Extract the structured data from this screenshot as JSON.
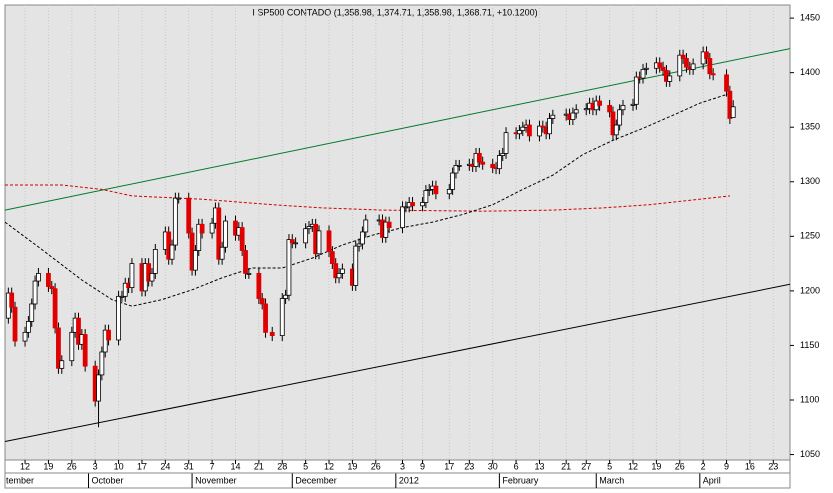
{
  "chart_data": {
    "type": "candlestick",
    "title": "I SP500 CONTADO (1,358.98, 1,374.71, 1,358.98, 1,368.71, +10.1200)",
    "x": [
      "2011-09-07",
      "2011-09-08",
      "2011-09-09",
      "2011-09-12",
      "2011-09-13",
      "2011-09-14",
      "2011-09-15",
      "2011-09-16",
      "2011-09-19",
      "2011-09-20",
      "2011-09-21",
      "2011-09-22",
      "2011-09-23",
      "2011-09-26",
      "2011-09-27",
      "2011-09-28",
      "2011-09-29",
      "2011-09-30",
      "2011-10-03",
      "2011-10-04",
      "2011-10-05",
      "2011-10-06",
      "2011-10-07",
      "2011-10-10",
      "2011-10-11",
      "2011-10-12",
      "2011-10-13",
      "2011-10-14",
      "2011-10-17",
      "2011-10-18",
      "2011-10-19",
      "2011-10-20",
      "2011-10-21",
      "2011-10-24",
      "2011-10-25",
      "2011-10-26",
      "2011-10-27",
      "2011-10-28",
      "2011-10-31",
      "2011-11-01",
      "2011-11-02",
      "2011-11-03",
      "2011-11-04",
      "2011-11-07",
      "2011-11-08",
      "2011-11-09",
      "2011-11-10",
      "2011-11-11",
      "2011-11-14",
      "2011-11-15",
      "2011-11-16",
      "2011-11-17",
      "2011-11-18",
      "2011-11-21",
      "2011-11-22",
      "2011-11-23",
      "2011-11-25",
      "2011-11-28",
      "2011-11-29",
      "2011-11-30",
      "2011-12-01",
      "2011-12-02",
      "2011-12-05",
      "2011-12-06",
      "2011-12-07",
      "2011-12-08",
      "2011-12-09",
      "2011-12-12",
      "2011-12-13",
      "2011-12-14",
      "2011-12-15",
      "2011-12-16",
      "2011-12-19",
      "2011-12-20",
      "2011-12-21",
      "2011-12-22",
      "2011-12-23",
      "2011-12-27",
      "2011-12-28",
      "2011-12-29",
      "2011-12-30",
      "2012-01-03",
      "2012-01-04",
      "2012-01-05",
      "2012-01-06",
      "2012-01-09",
      "2012-01-10",
      "2012-01-11",
      "2012-01-12",
      "2012-01-13",
      "2012-01-17",
      "2012-01-18",
      "2012-01-19",
      "2012-01-20",
      "2012-01-23",
      "2012-01-24",
      "2012-01-25",
      "2012-01-26",
      "2012-01-27",
      "2012-01-30",
      "2012-01-31",
      "2012-02-01",
      "2012-02-02",
      "2012-02-03",
      "2012-02-06",
      "2012-02-07",
      "2012-02-08",
      "2012-02-09",
      "2012-02-10",
      "2012-02-13",
      "2012-02-14",
      "2012-02-15",
      "2012-02-16",
      "2012-02-17",
      "2012-02-21",
      "2012-02-22",
      "2012-02-23",
      "2012-02-24",
      "2012-02-27",
      "2012-02-28",
      "2012-02-29",
      "2012-03-01",
      "2012-03-02",
      "2012-03-05",
      "2012-03-06",
      "2012-03-07",
      "2012-03-08",
      "2012-03-09",
      "2012-03-12",
      "2012-03-13",
      "2012-03-14",
      "2012-03-15",
      "2012-03-16",
      "2012-03-19",
      "2012-03-20",
      "2012-03-21",
      "2012-03-22",
      "2012-03-23",
      "2012-03-26",
      "2012-03-27",
      "2012-03-28",
      "2012-03-29",
      "2012-03-30",
      "2012-04-02",
      "2012-04-03",
      "2012-04-04",
      "2012-04-05",
      "2012-04-09",
      "2012-04-10",
      "2012-04-11"
    ],
    "open": [
      1175,
      1198,
      1185,
      1154,
      1162,
      1172,
      1188,
      1209,
      1216,
      1204,
      1202,
      1166,
      1129,
      1136,
      1162,
      1175,
      1151,
      1160,
      1131,
      1099,
      1123,
      1144,
      1164,
      1155,
      1195,
      1195,
      1207,
      1203,
      1225,
      1200,
      1225,
      1209,
      1216,
      1238,
      1254,
      1229,
      1242,
      1285,
      1285,
      1253,
      1219,
      1237,
      1261,
      1253,
      1262,
      1276,
      1229,
      1240,
      1264,
      1251,
      1258,
      1237,
      1216,
      1216,
      1193,
      1188,
      1162,
      1159,
      1193,
      1196,
      1247,
      1244,
      1244,
      1257,
      1259,
      1261,
      1234,
      1255,
      1236,
      1225,
      1212,
      1216,
      1220,
      1205,
      1241,
      1243,
      1254,
      1265,
      1265,
      1249,
      1263,
      1258,
      1277,
      1277,
      1281,
      1278,
      1281,
      1292,
      1293,
      1296,
      1289,
      1293,
      1308,
      1315,
      1315,
      1316,
      1314,
      1326,
      1318,
      1316,
      1313,
      1312,
      1324,
      1326,
      1345,
      1344,
      1347,
      1350,
      1352,
      1342,
      1351,
      1350,
      1344,
      1358,
      1361,
      1362,
      1357,
      1363,
      1366,
      1367,
      1372,
      1366,
      1374,
      1370,
      1364,
      1343,
      1352,
      1366,
      1370,
      1371,
      1396,
      1395,
      1403,
      1404,
      1409,
      1405,
      1402,
      1392,
      1397,
      1416,
      1413,
      1405,
      1403,
      1408,
      1419,
      1413,
      1399,
      1398,
      1383,
      1358.98
    ],
    "high": [
      1203,
      1203,
      1190,
      1167,
      1177,
      1193,
      1214,
      1221,
      1221,
      1209,
      1207,
      1171,
      1141,
      1167,
      1180,
      1180,
      1165,
      1165,
      1136,
      1128,
      1149,
      1169,
      1169,
      1200,
      1200,
      1212,
      1212,
      1230,
      1230,
      1230,
      1230,
      1221,
      1243,
      1259,
      1259,
      1247,
      1290,
      1290,
      1290,
      1258,
      1242,
      1266,
      1266,
      1267,
      1281,
      1281,
      1245,
      1269,
      1269,
      1263,
      1263,
      1242,
      1221,
      1221,
      1198,
      1193,
      1167,
      1198,
      1201,
      1252,
      1252,
      1249,
      1262,
      1264,
      1266,
      1266,
      1260,
      1260,
      1241,
      1230,
      1221,
      1225,
      1225,
      1246,
      1248,
      1259,
      1270,
      1270,
      1270,
      1268,
      1268,
      1282,
      1282,
      1286,
      1286,
      1286,
      1297,
      1298,
      1301,
      1301,
      1298,
      1313,
      1320,
      1320,
      1321,
      1321,
      1331,
      1331,
      1323,
      1321,
      1318,
      1329,
      1331,
      1350,
      1350,
      1352,
      1355,
      1357,
      1357,
      1356,
      1356,
      1355,
      1363,
      1366,
      1367,
      1367,
      1368,
      1371,
      1372,
      1377,
      1377,
      1379,
      1379,
      1375,
      1369,
      1357,
      1371,
      1375,
      1376,
      1401,
      1401,
      1408,
      1409,
      1414,
      1414,
      1410,
      1407,
      1402,
      1421,
      1421,
      1418,
      1410,
      1413,
      1424,
      1424,
      1418,
      1404,
      1403,
      1388,
      1374.71
    ],
    "low": [
      1170,
      1180,
      1149,
      1149,
      1157,
      1167,
      1183,
      1204,
      1199,
      1197,
      1161,
      1124,
      1124,
      1131,
      1157,
      1146,
      1146,
      1126,
      1094,
      1075,
      1118,
      1139,
      1150,
      1150,
      1190,
      1190,
      1198,
      1198,
      1195,
      1195,
      1204,
      1204,
      1211,
      1233,
      1224,
      1224,
      1237,
      1280,
      1248,
      1214,
      1214,
      1232,
      1248,
      1248,
      1257,
      1224,
      1224,
      1235,
      1246,
      1246,
      1232,
      1211,
      1211,
      1188,
      1183,
      1157,
      1154,
      1154,
      1188,
      1191,
      1239,
      1239,
      1239,
      1252,
      1254,
      1229,
      1229,
      1231,
      1220,
      1207,
      1207,
      1211,
      1200,
      1200,
      1236,
      1238,
      1249,
      1260,
      1244,
      1244,
      1253,
      1253,
      1272,
      1272,
      1273,
      1273,
      1276,
      1287,
      1288,
      1284,
      1284,
      1288,
      1303,
      1310,
      1310,
      1309,
      1309,
      1313,
      1311,
      1308,
      1307,
      1307,
      1319,
      1321,
      1339,
      1339,
      1342,
      1345,
      1337,
      1337,
      1345,
      1339,
      1339,
      1353,
      1356,
      1352,
      1352,
      1358,
      1361,
      1362,
      1361,
      1361,
      1365,
      1359,
      1338,
      1338,
      1347,
      1361,
      1365,
      1366,
      1390,
      1390,
      1398,
      1399,
      1400,
      1397,
      1387,
      1387,
      1392,
      1408,
      1400,
      1398,
      1398,
      1403,
      1408,
      1394,
      1393,
      1378,
      1353,
      1358.98
    ],
    "close": [
      1198,
      1185,
      1154,
      1162,
      1172,
      1188,
      1209,
      1216,
      1204,
      1202,
      1166,
      1129,
      1136,
      1162,
      1175,
      1151,
      1160,
      1131,
      1099,
      1123,
      1144,
      1164,
      1155,
      1195,
      1195,
      1207,
      1203,
      1225,
      1200,
      1225,
      1209,
      1216,
      1238,
      1254,
      1229,
      1242,
      1285,
      1285,
      1253,
      1219,
      1237,
      1261,
      1253,
      1262,
      1276,
      1229,
      1240,
      1264,
      1251,
      1258,
      1237,
      1216,
      1216,
      1193,
      1188,
      1162,
      1159,
      1193,
      1196,
      1247,
      1244,
      1244,
      1257,
      1259,
      1261,
      1234,
      1255,
      1236,
      1225,
      1212,
      1216,
      1220,
      1205,
      1241,
      1243,
      1254,
      1265,
      1265,
      1249,
      1263,
      1258,
      1277,
      1277,
      1281,
      1278,
      1281,
      1292,
      1293,
      1296,
      1289,
      1293,
      1308,
      1315,
      1315,
      1316,
      1314,
      1326,
      1318,
      1316,
      1313,
      1312,
      1324,
      1326,
      1345,
      1344,
      1347,
      1350,
      1352,
      1342,
      1351,
      1350,
      1344,
      1358,
      1361,
      1362,
      1357,
      1363,
      1366,
      1367,
      1372,
      1366,
      1374,
      1370,
      1364,
      1343,
      1352,
      1366,
      1370,
      1371,
      1396,
      1395,
      1403,
      1404,
      1409,
      1405,
      1402,
      1392,
      1397,
      1416,
      1413,
      1405,
      1403,
      1408,
      1419,
      1413,
      1399,
      1398,
      1383,
      1358,
      1368.71
    ],
    "up_color": "#ffffff",
    "down_color": "#e00000",
    "lines": [
      {
        "color": "#007a2a",
        "dash": false,
        "x": [
          "2011-09-06",
          "2012-04-28"
        ],
        "values": [
          1274,
          1422
        ]
      },
      {
        "color": "#000000",
        "dash": false,
        "x": [
          "2011-09-06",
          "2012-04-28"
        ],
        "values": [
          1062,
          1206
        ]
      },
      {
        "color": "#d00000",
        "dash": true,
        "x": [
          "2011-09-06",
          "2011-09-23",
          "2011-10-05",
          "2011-10-14",
          "2011-11-04",
          "2011-11-25",
          "2011-12-10",
          "2011-12-28",
          "2012-01-27",
          "2012-02-17",
          "2012-03-03",
          "2012-03-17",
          "2012-04-01",
          "2012-04-10"
        ],
        "values": [
          1297,
          1297,
          1293,
          1287,
          1284,
          1279,
          1276,
          1274,
          1273,
          1274,
          1276,
          1279,
          1284,
          1287
        ]
      },
      {
        "color": "#000000",
        "dash": true,
        "x": [
          "2011-09-06",
          "2011-09-17",
          "2011-09-29",
          "2011-10-08",
          "2011-10-14",
          "2011-10-23",
          "2011-11-01",
          "2011-11-10",
          "2011-11-19",
          "2011-11-28",
          "2011-12-07",
          "2011-12-16",
          "2011-12-25",
          "2012-01-03",
          "2012-01-12",
          "2012-01-21",
          "2012-01-30",
          "2012-02-08",
          "2012-02-17",
          "2012-02-26",
          "2012-03-06",
          "2012-03-15",
          "2012-03-24",
          "2012-04-01",
          "2012-04-10"
        ],
        "values": [
          1263,
          1238,
          1210,
          1192,
          1186,
          1192,
          1201,
          1212,
          1221,
          1221,
          1230,
          1242,
          1251,
          1258,
          1263,
          1270,
          1279,
          1293,
          1306,
          1325,
          1338,
          1349,
          1361,
          1372,
          1381
        ]
      }
    ],
    "xlim": [
      "2011-09-06",
      "2012-04-28"
    ],
    "xticks": [
      {
        "value": "2011-09-12",
        "label": "12"
      },
      {
        "value": "2011-09-19",
        "label": "19"
      },
      {
        "value": "2011-09-26",
        "label": "26"
      },
      {
        "value": "2011-10-03",
        "label": "3"
      },
      {
        "value": "2011-10-10",
        "label": "10"
      },
      {
        "value": "2011-10-17",
        "label": "17"
      },
      {
        "value": "2011-10-24",
        "label": "24"
      },
      {
        "value": "2011-10-31",
        "label": "31"
      },
      {
        "value": "2011-11-07",
        "label": "7"
      },
      {
        "value": "2011-11-14",
        "label": "14"
      },
      {
        "value": "2011-11-21",
        "label": "21"
      },
      {
        "value": "2011-11-28",
        "label": "28"
      },
      {
        "value": "2011-12-05",
        "label": "5"
      },
      {
        "value": "2011-12-12",
        "label": "12"
      },
      {
        "value": "2011-12-19",
        "label": "19"
      },
      {
        "value": "2011-12-26",
        "label": "26"
      },
      {
        "value": "2012-01-03",
        "label": "3"
      },
      {
        "value": "2012-01-09",
        "label": "9"
      },
      {
        "value": "2012-01-17",
        "label": "17"
      },
      {
        "value": "2012-01-23",
        "label": "23"
      },
      {
        "value": "2012-01-30",
        "label": "30"
      },
      {
        "value": "2012-02-06",
        "label": "6"
      },
      {
        "value": "2012-02-13",
        "label": "13"
      },
      {
        "value": "2012-02-21",
        "label": "21"
      },
      {
        "value": "2012-02-27",
        "label": "27"
      },
      {
        "value": "2012-03-05",
        "label": "5"
      },
      {
        "value": "2012-03-12",
        "label": "12"
      },
      {
        "value": "2012-03-19",
        "label": "19"
      },
      {
        "value": "2012-03-26",
        "label": "26"
      },
      {
        "value": "2012-04-02",
        "label": "2"
      },
      {
        "value": "2012-04-09",
        "label": "9"
      },
      {
        "value": "2012-04-16",
        "label": "16"
      },
      {
        "value": "2012-04-23",
        "label": "23"
      }
    ],
    "months": [
      {
        "value": "2011-09-01",
        "label": "tember"
      },
      {
        "value": "2011-10-01",
        "label": "October"
      },
      {
        "value": "2011-11-01",
        "label": "November"
      },
      {
        "value": "2011-12-01",
        "label": "December"
      },
      {
        "value": "2012-01-01",
        "label": "2012"
      },
      {
        "value": "2012-02-01",
        "label": "February"
      },
      {
        "value": "2012-03-01",
        "label": "March"
      },
      {
        "value": "2012-04-01",
        "label": "April"
      }
    ],
    "ylim": [
      1045,
      1462
    ],
    "yticks": [
      1050,
      1100,
      1150,
      1200,
      1250,
      1300,
      1350,
      1400,
      1450
    ],
    "grid": true
  }
}
